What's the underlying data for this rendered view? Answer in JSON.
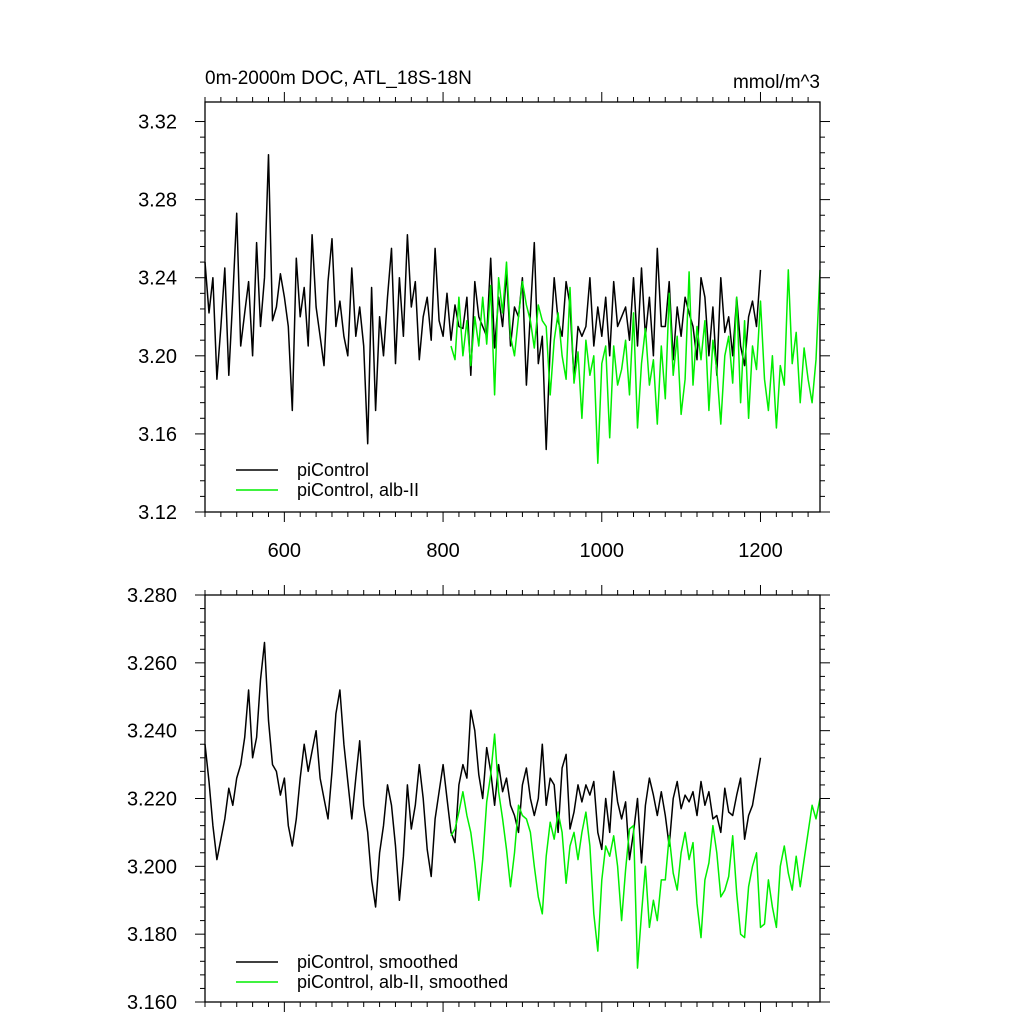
{
  "chart_data": [
    {
      "type": "line",
      "title": "0m-2000m DOC, ATL_18S-18N",
      "units_label": "mmol/m^3",
      "xlim": [
        500,
        1275
      ],
      "ylim": [
        3.12,
        3.33
      ],
      "x_ticks": [
        600,
        800,
        1000,
        1200
      ],
      "x_tick_labels": [
        "600",
        "800",
        "1000",
        "1200"
      ],
      "y_ticks": [
        3.12,
        3.16,
        3.2,
        3.24,
        3.28,
        3.32
      ],
      "y_tick_labels": [
        "3.12",
        "3.16",
        "3.20",
        "3.24",
        "3.28",
        "3.32"
      ],
      "grid": false,
      "legend_position": "bottom-left",
      "series": [
        {
          "name": "piControl",
          "color": "#000000",
          "x_step": 5,
          "x": [
            500,
            505,
            510,
            515,
            520,
            525,
            530,
            535,
            540,
            545,
            550,
            555,
            560,
            565,
            570,
            575,
            580,
            585,
            590,
            595,
            600,
            605,
            610,
            615,
            620,
            625,
            630,
            635,
            640,
            645,
            650,
            655,
            660,
            665,
            670,
            675,
            680,
            685,
            690,
            695,
            700,
            705,
            710,
            715,
            720,
            725,
            730,
            735,
            740,
            745,
            750,
            755,
            760,
            765,
            770,
            775,
            780,
            785,
            790,
            795,
            800,
            805,
            810,
            815,
            820,
            825,
            830,
            835,
            840,
            845,
            850,
            855,
            860,
            865,
            870,
            875,
            880,
            885,
            890,
            895,
            900,
            905,
            910,
            915,
            920,
            925,
            930,
            935,
            940,
            945,
            950,
            955,
            960,
            965,
            970,
            975,
            980,
            985,
            990,
            995,
            1000,
            1005,
            1010,
            1015,
            1020,
            1025,
            1030,
            1035,
            1040,
            1045,
            1050,
            1055,
            1060,
            1065,
            1070,
            1075,
            1080,
            1085,
            1090,
            1095,
            1100,
            1105,
            1110,
            1115,
            1120,
            1125,
            1130,
            1135,
            1140,
            1145,
            1150,
            1155,
            1160,
            1165,
            1170,
            1175,
            1180,
            1185,
            1190,
            1195,
            1200
          ],
          "y": [
            3.248,
            3.222,
            3.24,
            3.188,
            3.215,
            3.245,
            3.19,
            3.23,
            3.273,
            3.205,
            3.222,
            3.238,
            3.2,
            3.258,
            3.215,
            3.24,
            3.303,
            3.218,
            3.225,
            3.242,
            3.23,
            3.215,
            3.172,
            3.25,
            3.22,
            3.235,
            3.205,
            3.262,
            3.225,
            3.21,
            3.195,
            3.238,
            3.26,
            3.215,
            3.228,
            3.21,
            3.2,
            3.245,
            3.21,
            3.225,
            3.205,
            3.155,
            3.235,
            3.172,
            3.22,
            3.2,
            3.23,
            3.255,
            3.196,
            3.24,
            3.21,
            3.262,
            3.225,
            3.238,
            3.198,
            3.22,
            3.23,
            3.208,
            3.255,
            3.218,
            3.21,
            3.232,
            3.208,
            3.226,
            3.215,
            3.214,
            3.23,
            3.19,
            3.238,
            3.22,
            3.215,
            3.21,
            3.25,
            3.204,
            3.23,
            3.215,
            3.243,
            3.205,
            3.225,
            3.22,
            3.24,
            3.185,
            3.222,
            3.258,
            3.196,
            3.21,
            3.152,
            3.205,
            3.24,
            3.218,
            3.21,
            3.238,
            3.226,
            3.188,
            3.215,
            3.21,
            3.215,
            3.24,
            3.205,
            3.225,
            3.21,
            3.23,
            3.2,
            3.238,
            3.215,
            3.22,
            3.225,
            3.208,
            3.24,
            3.205,
            3.245,
            3.21,
            3.23,
            3.2,
            3.255,
            3.215,
            3.215,
            3.238,
            3.198,
            3.225,
            3.21,
            3.23,
            3.222,
            3.215,
            3.198,
            3.24,
            3.23,
            3.2,
            3.225,
            3.19,
            3.24,
            3.212,
            3.22,
            3.2,
            3.23,
            3.205,
            3.195,
            3.22,
            3.228,
            3.215,
            3.244
          ]
        },
        {
          "name": "piControl, alb-II",
          "color": "#00ee00",
          "x_step": 5,
          "x": [
            810,
            815,
            820,
            825,
            830,
            835,
            840,
            845,
            850,
            855,
            860,
            865,
            870,
            875,
            880,
            885,
            890,
            895,
            900,
            905,
            910,
            915,
            920,
            925,
            930,
            935,
            940,
            945,
            950,
            955,
            960,
            965,
            970,
            975,
            980,
            985,
            990,
            995,
            1000,
            1005,
            1010,
            1015,
            1020,
            1025,
            1030,
            1035,
            1040,
            1045,
            1050,
            1055,
            1060,
            1065,
            1070,
            1075,
            1080,
            1085,
            1090,
            1095,
            1100,
            1105,
            1110,
            1115,
            1120,
            1125,
            1130,
            1135,
            1140,
            1145,
            1150,
            1155,
            1160,
            1165,
            1170,
            1175,
            1180,
            1185,
            1190,
            1195,
            1200,
            1205,
            1210,
            1215,
            1220,
            1225,
            1230,
            1235,
            1240,
            1245,
            1250,
            1255,
            1260,
            1265,
            1270,
            1275
          ],
          "y": [
            3.205,
            3.198,
            3.23,
            3.2,
            3.218,
            3.195,
            3.22,
            3.205,
            3.23,
            3.206,
            3.236,
            3.18,
            3.24,
            3.222,
            3.248,
            3.21,
            3.2,
            3.22,
            3.238,
            3.226,
            3.218,
            3.204,
            3.226,
            3.218,
            3.215,
            3.18,
            3.208,
            3.222,
            3.2,
            3.188,
            3.235,
            3.186,
            3.202,
            3.168,
            3.208,
            3.19,
            3.2,
            3.145,
            3.196,
            3.205,
            3.158,
            3.205,
            3.185,
            3.193,
            3.208,
            3.18,
            3.222,
            3.163,
            3.196,
            3.214,
            3.185,
            3.198,
            3.165,
            3.205,
            3.178,
            3.232,
            3.19,
            3.21,
            3.17,
            3.188,
            3.243,
            3.185,
            3.215,
            3.198,
            3.218,
            3.172,
            3.208,
            3.193,
            3.165,
            3.2,
            3.21,
            3.186,
            3.23,
            3.176,
            3.218,
            3.168,
            3.205,
            3.193,
            3.228,
            3.188,
            3.172,
            3.2,
            3.163,
            3.195,
            3.185,
            3.244,
            3.196,
            3.212,
            3.176,
            3.204,
            3.188,
            3.176,
            3.198,
            3.244
          ]
        }
      ]
    },
    {
      "type": "line",
      "title": "",
      "xlim": [
        500,
        1275
      ],
      "ylim": [
        3.16,
        3.28
      ],
      "x_ticks": [
        600,
        800,
        1000,
        1200
      ],
      "x_tick_labels": [
        "",
        "",
        "",
        ""
      ],
      "y_ticks": [
        3.16,
        3.18,
        3.2,
        3.22,
        3.24,
        3.26,
        3.28
      ],
      "y_tick_labels": [
        "3.160",
        "3.180",
        "3.200",
        "3.220",
        "3.240",
        "3.260",
        "3.280"
      ],
      "grid": false,
      "legend_position": "bottom-left",
      "series": [
        {
          "name": "piControl, smoothed",
          "color": "#000000",
          "x_step": 5,
          "x": [
            500,
            505,
            510,
            515,
            520,
            525,
            530,
            535,
            540,
            545,
            550,
            555,
            560,
            565,
            570,
            575,
            580,
            585,
            590,
            595,
            600,
            605,
            610,
            615,
            620,
            625,
            630,
            635,
            640,
            645,
            650,
            655,
            660,
            665,
            670,
            675,
            680,
            685,
            690,
            695,
            700,
            705,
            710,
            715,
            720,
            725,
            730,
            735,
            740,
            745,
            750,
            755,
            760,
            765,
            770,
            775,
            780,
            785,
            790,
            795,
            800,
            805,
            810,
            815,
            820,
            825,
            830,
            835,
            840,
            845,
            850,
            855,
            860,
            865,
            870,
            875,
            880,
            885,
            890,
            895,
            900,
            905,
            910,
            915,
            920,
            925,
            930,
            935,
            940,
            945,
            950,
            955,
            960,
            965,
            970,
            975,
            980,
            985,
            990,
            995,
            1000,
            1005,
            1010,
            1015,
            1020,
            1025,
            1030,
            1035,
            1040,
            1045,
            1050,
            1055,
            1060,
            1065,
            1070,
            1075,
            1080,
            1085,
            1090,
            1095,
            1100,
            1105,
            1110,
            1115,
            1120,
            1125,
            1130,
            1135,
            1140,
            1145,
            1150,
            1155,
            1160,
            1165,
            1170,
            1175,
            1180,
            1185,
            1190,
            1195,
            1200
          ],
          "y": [
            3.236,
            3.225,
            3.212,
            3.202,
            3.208,
            3.214,
            3.223,
            3.218,
            3.226,
            3.23,
            3.238,
            3.252,
            3.232,
            3.238,
            3.255,
            3.266,
            3.243,
            3.23,
            3.228,
            3.221,
            3.226,
            3.212,
            3.206,
            3.214,
            3.226,
            3.236,
            3.228,
            3.234,
            3.24,
            3.226,
            3.22,
            3.214,
            3.228,
            3.245,
            3.252,
            3.236,
            3.225,
            3.214,
            3.226,
            3.237,
            3.218,
            3.21,
            3.196,
            3.188,
            3.204,
            3.212,
            3.224,
            3.218,
            3.206,
            3.19,
            3.203,
            3.224,
            3.211,
            3.218,
            3.23,
            3.22,
            3.205,
            3.197,
            3.214,
            3.222,
            3.23,
            3.22,
            3.21,
            3.207,
            3.224,
            3.23,
            3.226,
            3.246,
            3.24,
            3.227,
            3.22,
            3.235,
            3.228,
            3.218,
            3.23,
            3.222,
            3.226,
            3.218,
            3.215,
            3.21,
            3.224,
            3.229,
            3.22,
            3.215,
            3.22,
            3.236,
            3.218,
            3.226,
            3.224,
            3.21,
            3.229,
            3.233,
            3.211,
            3.216,
            3.224,
            3.219,
            3.224,
            3.221,
            3.225,
            3.21,
            3.205,
            3.22,
            3.21,
            3.228,
            3.219,
            3.214,
            3.219,
            3.202,
            3.21,
            3.22,
            3.201,
            3.218,
            3.226,
            3.221,
            3.215,
            3.222,
            3.215,
            3.206,
            3.22,
            3.225,
            3.217,
            3.221,
            3.219,
            3.222,
            3.215,
            3.225,
            3.218,
            3.222,
            3.214,
            3.215,
            3.21,
            3.223,
            3.216,
            3.215,
            3.221,
            3.226,
            3.208,
            3.215,
            3.218,
            3.225,
            3.232
          ]
        },
        {
          "name": "piControl, alb-II, smoothed",
          "color": "#00ee00",
          "x_step": 5,
          "x": [
            810,
            815,
            820,
            825,
            830,
            835,
            840,
            845,
            850,
            855,
            860,
            865,
            870,
            875,
            880,
            885,
            890,
            895,
            900,
            905,
            910,
            915,
            920,
            925,
            930,
            935,
            940,
            945,
            950,
            955,
            960,
            965,
            970,
            975,
            980,
            985,
            990,
            995,
            1000,
            1005,
            1010,
            1015,
            1020,
            1025,
            1030,
            1035,
            1040,
            1045,
            1050,
            1055,
            1060,
            1065,
            1070,
            1075,
            1080,
            1085,
            1090,
            1095,
            1100,
            1105,
            1110,
            1115,
            1120,
            1125,
            1130,
            1135,
            1140,
            1145,
            1150,
            1155,
            1160,
            1165,
            1170,
            1175,
            1180,
            1185,
            1190,
            1195,
            1200,
            1205,
            1210,
            1215,
            1220,
            1225,
            1230,
            1235,
            1240,
            1245,
            1250,
            1255,
            1260,
            1265,
            1270,
            1275
          ],
          "y": [
            3.209,
            3.211,
            3.216,
            3.222,
            3.215,
            3.21,
            3.201,
            3.19,
            3.202,
            3.219,
            3.227,
            3.239,
            3.222,
            3.214,
            3.205,
            3.194,
            3.204,
            3.218,
            3.215,
            3.214,
            3.21,
            3.2,
            3.191,
            3.186,
            3.203,
            3.213,
            3.208,
            3.216,
            3.21,
            3.195,
            3.206,
            3.21,
            3.202,
            3.21,
            3.216,
            3.206,
            3.186,
            3.175,
            3.196,
            3.206,
            3.203,
            3.209,
            3.2,
            3.184,
            3.199,
            3.211,
            3.212,
            3.17,
            3.186,
            3.2,
            3.182,
            3.19,
            3.184,
            3.196,
            3.196,
            3.209,
            3.198,
            3.193,
            3.204,
            3.21,
            3.202,
            3.207,
            3.189,
            3.179,
            3.196,
            3.201,
            3.212,
            3.204,
            3.191,
            3.193,
            3.197,
            3.209,
            3.192,
            3.18,
            3.179,
            3.194,
            3.2,
            3.204,
            3.182,
            3.183,
            3.196,
            3.188,
            3.182,
            3.2,
            3.206,
            3.198,
            3.193,
            3.203,
            3.194,
            3.202,
            3.21,
            3.218,
            3.214,
            3.22
          ]
        }
      ]
    }
  ]
}
